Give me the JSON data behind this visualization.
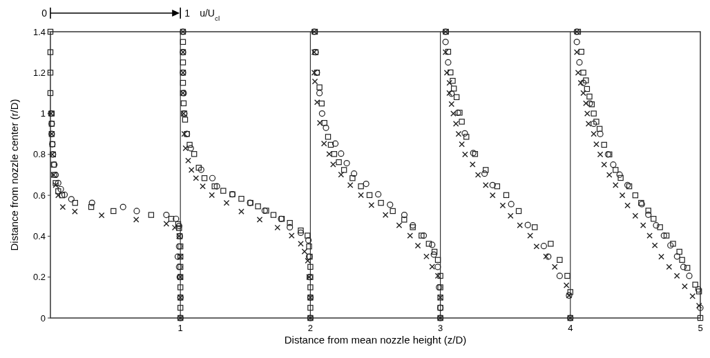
{
  "chart_data": {
    "type": "scatter",
    "xlabel": "Distance from mean nozzle height (z/D)",
    "ylabel": "Distance from nozzle center (r/D)",
    "annotations": [
      "0",
      "1",
      "u/U$_{cl}$"
    ],
    "xlim": [
      0,
      5
    ],
    "xticks": [
      1,
      2,
      3,
      4,
      5
    ],
    "ylim": [
      0,
      1.4
    ],
    "yticks": [
      0,
      0.2,
      0.4,
      0.6,
      0.8,
      1,
      1.2,
      1.4
    ],
    "ref_lines": [
      {
        "axis": "x",
        "value": 1
      },
      {
        "axis": "x",
        "value": 2
      },
      {
        "axis": "x",
        "value": 3
      },
      {
        "axis": "x",
        "value": 4
      }
    ],
    "series": [
      {
        "color": "#222222",
        "marker": "square",
        "x": [
          0,
          0,
          0,
          0,
          0.01,
          0.01,
          0.01,
          0.015,
          0.02,
          0.025,
          0.03,
          0.04,
          0.06,
          0.09,
          0.19,
          0.314,
          0.485,
          0.775,
          0.93,
          0.983,
          0.99,
          0.995,
          1.0,
          1.0,
          1.0,
          1.0,
          1.0,
          1.0,
          1.0,
          1.0,
          1.02,
          1.02,
          1.02,
          1.02,
          1.02,
          1.02,
          1.02,
          1.025,
          1.03,
          1.036,
          1.05,
          1.071,
          1.106,
          1.141,
          1.185,
          1.263,
          1.33,
          1.4,
          1.469,
          1.539,
          1.597,
          1.66,
          1.716,
          1.78,
          1.842,
          1.926,
          1.978,
          1.99,
          1.995,
          2.0,
          2.0,
          2.0,
          2.0,
          2.0,
          2.0,
          2.035,
          2.04,
          2.05,
          2.07,
          2.087,
          2.108,
          2.136,
          2.157,
          2.183,
          2.219,
          2.259,
          2.324,
          2.389,
          2.455,
          2.543,
          2.634,
          2.722,
          2.788,
          2.855,
          2.911,
          2.955,
          2.981,
          3.0,
          3.0,
          3.0,
          3.0,
          3.0,
          3.043,
          3.06,
          3.078,
          3.095,
          3.104,
          3.125,
          3.148,
          3.165,
          3.2,
          3.267,
          3.349,
          3.437,
          3.507,
          3.603,
          3.726,
          3.849,
          3.918,
          3.977,
          4.0,
          4.0,
          4.059,
          4.085,
          4.1,
          4.12,
          4.128,
          4.147,
          4.165,
          4.18,
          4.2,
          4.225,
          4.26,
          4.3,
          4.348,
          4.387,
          4.453,
          4.5,
          4.545,
          4.6,
          4.64,
          4.69,
          4.74,
          4.79,
          4.839,
          4.86,
          4.9,
          4.961,
          4.99,
          5.0
        ],
        "values": [
          1.4,
          1.3,
          1.2,
          1.1,
          1.0,
          0.95,
          0.9,
          0.85,
          0.8,
          0.75,
          0.7,
          0.66,
          0.62,
          0.6,
          0.563,
          0.543,
          0.523,
          0.504,
          0.485,
          0.459,
          0.44,
          0.4,
          0.35,
          0.3,
          0.25,
          0.2,
          0.15,
          0.1,
          0.05,
          0,
          1.4,
          1.35,
          1.3,
          1.25,
          1.2,
          1.15,
          1.1,
          1.05,
          1.0,
          0.97,
          0.9,
          0.847,
          0.802,
          0.735,
          0.684,
          0.644,
          0.622,
          0.605,
          0.583,
          0.563,
          0.546,
          0.525,
          0.504,
          0.485,
          0.465,
          0.428,
          0.403,
          0.35,
          0.3,
          0.25,
          0.2,
          0.15,
          0.1,
          0.05,
          0,
          1.4,
          1.3,
          1.2,
          1.128,
          1.049,
          0.954,
          0.886,
          0.847,
          0.802,
          0.762,
          0.724,
          0.684,
          0.644,
          0.601,
          0.563,
          0.523,
          0.481,
          0.444,
          0.403,
          0.363,
          0.324,
          0.284,
          0.206,
          0.15,
          0.1,
          0.05,
          0,
          1.4,
          1.302,
          1.201,
          1.16,
          1.122,
          1.08,
          1.004,
          0.96,
          0.886,
          0.802,
          0.724,
          0.644,
          0.601,
          0.523,
          0.444,
          0.363,
          0.284,
          0.206,
          0.127,
          0,
          1.4,
          1.302,
          1.2,
          1.162,
          1.12,
          1.083,
          1.045,
          1.0,
          0.96,
          0.925,
          0.847,
          0.8,
          0.724,
          0.685,
          0.644,
          0.6,
          0.563,
          0.525,
          0.485,
          0.444,
          0.403,
          0.363,
          0.324,
          0.284,
          0.245,
          0.163,
          0.13,
          0
        ]
      },
      {
        "color": "#222222",
        "marker": "circle",
        "x": [
          0.005,
          0.01,
          0.01,
          0.015,
          0.02,
          0.03,
          0.04,
          0.06,
          0.08,
          0.109,
          0.161,
          0.32,
          0.559,
          0.664,
          0.892,
          0.966,
          0.99,
          0.995,
          0.99,
          0.98,
          0.99,
          0.995,
          1.0,
          1.0,
          1.02,
          1.02,
          1.02,
          1.025,
          1.03,
          1.05,
          1.08,
          1.16,
          1.246,
          1.281,
          1.4,
          1.536,
          1.649,
          1.775,
          1.842,
          1.926,
          1.985,
          1.99,
          1.995,
          2.0,
          2.0,
          2.03,
          2.04,
          2.05,
          2.07,
          2.09,
          2.12,
          2.192,
          2.236,
          2.28,
          2.336,
          2.429,
          2.522,
          2.613,
          2.723,
          2.788,
          2.872,
          2.937,
          2.95,
          2.98,
          2.99,
          3.0,
          3.0,
          3.04,
          3.04,
          3.06,
          3.086,
          3.135,
          3.188,
          3.253,
          3.34,
          3.402,
          3.545,
          3.673,
          3.796,
          3.83,
          3.918,
          3.99,
          4.0,
          4.05,
          4.05,
          4.07,
          4.1,
          4.15,
          4.18,
          4.23,
          4.29,
          4.33,
          4.379,
          4.44,
          4.55,
          4.6,
          4.66,
          4.72,
          4.77,
          4.821,
          4.87,
          4.915,
          4.985,
          5.0
        ],
        "values": [
          1.0,
          0.95,
          0.9,
          0.85,
          0.8,
          0.75,
          0.7,
          0.66,
          0.63,
          0.603,
          0.581,
          0.563,
          0.543,
          0.523,
          0.504,
          0.485,
          0.45,
          0.4,
          0.35,
          0.3,
          0.25,
          0.2,
          0.1,
          0,
          1.4,
          1.3,
          1.2,
          1.1,
          1.0,
          0.9,
          0.83,
          0.725,
          0.684,
          0.644,
          0.605,
          0.563,
          0.525,
          0.485,
          0.444,
          0.417,
          0.38,
          0.3,
          0.2,
          0.1,
          0,
          1.4,
          1.3,
          1.2,
          1.1,
          1.0,
          0.93,
          0.853,
          0.804,
          0.757,
          0.706,
          0.656,
          0.605,
          0.554,
          0.504,
          0.453,
          0.403,
          0.358,
          0.31,
          0.25,
          0.15,
          0.05,
          0,
          1.4,
          1.35,
          1.25,
          1.097,
          1.004,
          0.903,
          0.807,
          0.706,
          0.65,
          0.557,
          0.455,
          0.352,
          0.3,
          0.206,
          0.11,
          0,
          1.4,
          1.35,
          1.25,
          1.15,
          1.05,
          0.95,
          0.9,
          0.8,
          0.75,
          0.701,
          0.65,
          0.557,
          0.505,
          0.453,
          0.403,
          0.355,
          0.301,
          0.25,
          0.206,
          0.14,
          0.05
        ]
      },
      {
        "color": "#222222",
        "marker": "cross",
        "x": [
          0.005,
          0.01,
          0.015,
          0.025,
          0.04,
          0.06,
          0.095,
          0.188,
          0.394,
          0.66,
          0.892,
          0.957,
          0.99,
          1.0,
          1.0,
          1.0,
          1.0,
          1.02,
          1.02,
          1.02,
          1.02,
          1.025,
          1.03,
          1.04,
          1.06,
          1.085,
          1.12,
          1.172,
          1.242,
          1.355,
          1.469,
          1.61,
          1.747,
          1.856,
          1.926,
          1.955,
          1.98,
          1.99,
          2.0,
          2.0,
          2.03,
          2.03,
          2.03,
          2.035,
          2.052,
          2.073,
          2.105,
          2.145,
          2.175,
          2.236,
          2.307,
          2.389,
          2.47,
          2.578,
          2.683,
          2.767,
          2.827,
          2.893,
          2.937,
          2.981,
          3.0,
          3.0,
          3.04,
          3.04,
          3.05,
          3.07,
          3.069,
          3.086,
          3.1,
          3.12,
          3.14,
          3.165,
          3.19,
          3.248,
          3.29,
          3.349,
          3.402,
          3.48,
          3.54,
          3.612,
          3.691,
          3.74,
          3.813,
          3.88,
          3.97,
          3.99,
          4.0,
          4.05,
          4.05,
          4.06,
          4.08,
          4.1,
          4.12,
          4.13,
          4.14,
          4.18,
          4.2,
          4.23,
          4.26,
          4.3,
          4.348,
          4.4,
          4.44,
          4.5,
          4.56,
          4.61,
          4.65,
          4.7,
          4.76,
          4.82,
          4.88,
          4.94,
          4.99
        ],
        "values": [
          1.0,
          0.9,
          0.8,
          0.7,
          0.65,
          0.6,
          0.543,
          0.521,
          0.502,
          0.481,
          0.461,
          0.442,
          0.4,
          0.3,
          0.2,
          0.1,
          0,
          1.4,
          1.3,
          1.2,
          1.1,
          1.0,
          0.9,
          0.83,
          0.77,
          0.724,
          0.684,
          0.644,
          0.601,
          0.563,
          0.521,
          0.481,
          0.442,
          0.403,
          0.363,
          0.325,
          0.28,
          0.2,
          0.1,
          0,
          1.4,
          1.3,
          1.2,
          1.157,
          1.055,
          0.954,
          0.853,
          0.802,
          0.751,
          0.701,
          0.65,
          0.601,
          0.552,
          0.504,
          0.453,
          0.403,
          0.354,
          0.301,
          0.251,
          0.206,
          0.1,
          0,
          1.4,
          1.3,
          1.2,
          1.15,
          1.1,
          1.046,
          1.0,
          0.95,
          0.9,
          0.85,
          0.8,
          0.751,
          0.7,
          0.65,
          0.6,
          0.55,
          0.5,
          0.453,
          0.403,
          0.35,
          0.301,
          0.25,
          0.16,
          0.11,
          0,
          1.4,
          1.3,
          1.2,
          1.15,
          1.1,
          1.05,
          1.0,
          0.95,
          0.9,
          0.85,
          0.8,
          0.75,
          0.7,
          0.65,
          0.6,
          0.55,
          0.5,
          0.453,
          0.403,
          0.355,
          0.3,
          0.25,
          0.206,
          0.155,
          0.107,
          0.06
        ]
      }
    ]
  }
}
